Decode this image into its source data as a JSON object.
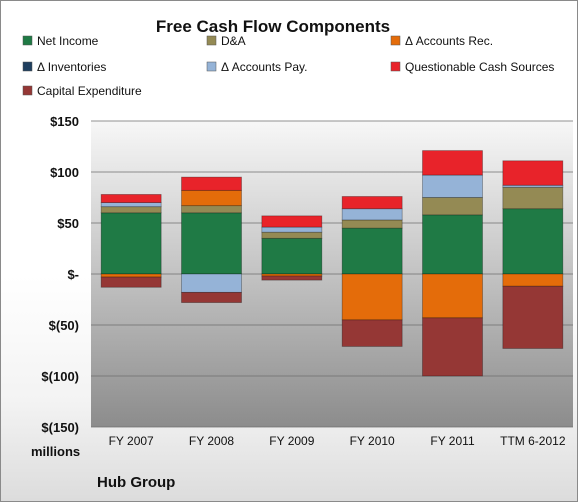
{
  "chart_data": {
    "type": "bar",
    "stacked": true,
    "title": "Free Cash Flow Components",
    "unit_label": "millions",
    "company_label": "Hub Group",
    "ylim": [
      -150,
      150
    ],
    "yticks": [
      {
        "value": 150,
        "label": "$150"
      },
      {
        "value": 100,
        "label": "$100"
      },
      {
        "value": 50,
        "label": "$50"
      },
      {
        "value": 0,
        "label": "$-"
      },
      {
        "value": -50,
        "label": "$(50)"
      },
      {
        "value": -100,
        "label": "$(100)"
      },
      {
        "value": -150,
        "label": "$(150)"
      }
    ],
    "categories": [
      "FY 2007",
      "FY 2008",
      "FY 2009",
      "FY 2010",
      "FY 2011",
      "TTM 6-2012"
    ],
    "legend_placement": "top",
    "series": [
      {
        "name": "Net Income",
        "color": "#1f7a45",
        "values": [
          60,
          60,
          35,
          45,
          58,
          64
        ]
      },
      {
        "name": "D&A",
        "color": "#948a54",
        "values": [
          6,
          7,
          6,
          8,
          17,
          21
        ]
      },
      {
        "name": "Δ Accounts Rec.",
        "color": "#e46c0a",
        "values": [
          -3,
          15,
          -2,
          -45,
          -43,
          -12
        ]
      },
      {
        "name": "Δ Inventories",
        "color": "#1f3f5f",
        "values": [
          0,
          0,
          0,
          0,
          0,
          0
        ]
      },
      {
        "name": "Δ Accounts Pay.",
        "color": "#95b3d7",
        "values": [
          4,
          -18,
          5,
          11,
          22,
          2
        ]
      },
      {
        "name": "Questionable Cash Sources",
        "color": "#e8232a",
        "values": [
          8,
          13,
          11,
          12,
          24,
          24
        ]
      },
      {
        "name": "Capital Expenditure",
        "color": "#953735",
        "values": [
          -10,
          -10,
          -4,
          -26,
          -57,
          -61
        ]
      }
    ]
  }
}
